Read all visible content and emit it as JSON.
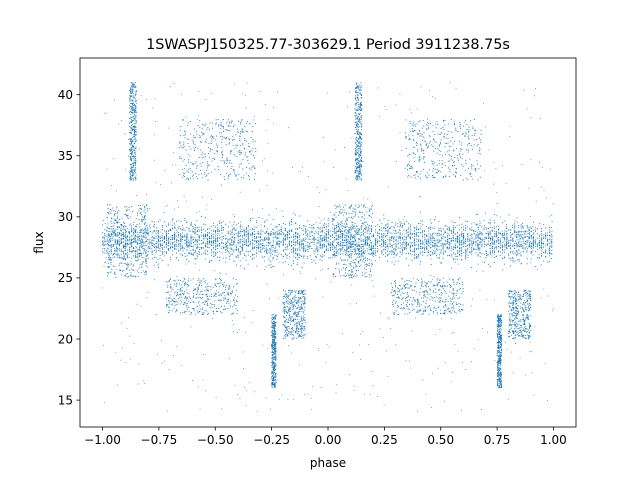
{
  "chart_data": {
    "type": "scatter",
    "title": "1SWASPJ150325.77-303629.1 Period 3911238.75s",
    "xlabel": "phase",
    "ylabel": "flux",
    "xlim": [
      -1.1,
      1.1
    ],
    "ylim": [
      12.8,
      43.0
    ],
    "xticks": [
      -1.0,
      -0.75,
      -0.5,
      -0.25,
      0.0,
      0.25,
      0.5,
      0.75,
      1.0
    ],
    "xtick_labels": [
      "−1.00",
      "−0.75",
      "−0.50",
      "−0.25",
      "0.00",
      "0.25",
      "0.50",
      "0.75",
      "1.00"
    ],
    "yticks": [
      15,
      20,
      25,
      30,
      35,
      40
    ],
    "ytick_labels": [
      "15",
      "20",
      "25",
      "30",
      "35",
      "40"
    ],
    "grid": false,
    "series": [
      {
        "color": "#1f77b4",
        "phase_range": [
          -1.0,
          1.0
        ],
        "flux_center": 28.0,
        "flux_band": [
          25.0,
          31.0
        ],
        "flux_full_range": [
          14.0,
          41.0
        ],
        "clusters": [
          {
            "x": [
              -0.98,
              -0.8
            ],
            "y": [
              25.0,
              31.0
            ]
          },
          {
            "x": [
              -0.88,
              -0.85
            ],
            "y": [
              33.0,
              41.0
            ]
          },
          {
            "x": [
              -0.72,
              -0.4
            ],
            "y": [
              22.0,
              25.0
            ]
          },
          {
            "x": [
              -0.66,
              -0.32
            ],
            "y": [
              33.0,
              38.0
            ]
          },
          {
            "x": [
              -0.25,
              -0.23
            ],
            "y": [
              16.0,
              22.0
            ]
          },
          {
            "x": [
              -0.2,
              -0.1
            ],
            "y": [
              20.0,
              24.0
            ]
          },
          {
            "x": [
              0.02,
              0.2
            ],
            "y": [
              25.0,
              31.0
            ]
          },
          {
            "x": [
              0.12,
              0.15
            ],
            "y": [
              33.0,
              41.0
            ]
          },
          {
            "x": [
              0.28,
              0.6
            ],
            "y": [
              22.0,
              25.0
            ]
          },
          {
            "x": [
              0.34,
              0.68
            ],
            "y": [
              33.0,
              38.0
            ]
          },
          {
            "x": [
              0.75,
              0.77
            ],
            "y": [
              16.0,
              22.0
            ]
          },
          {
            "x": [
              0.8,
              0.9
            ],
            "y": [
              20.0,
              24.0
            ]
          }
        ]
      }
    ]
  }
}
